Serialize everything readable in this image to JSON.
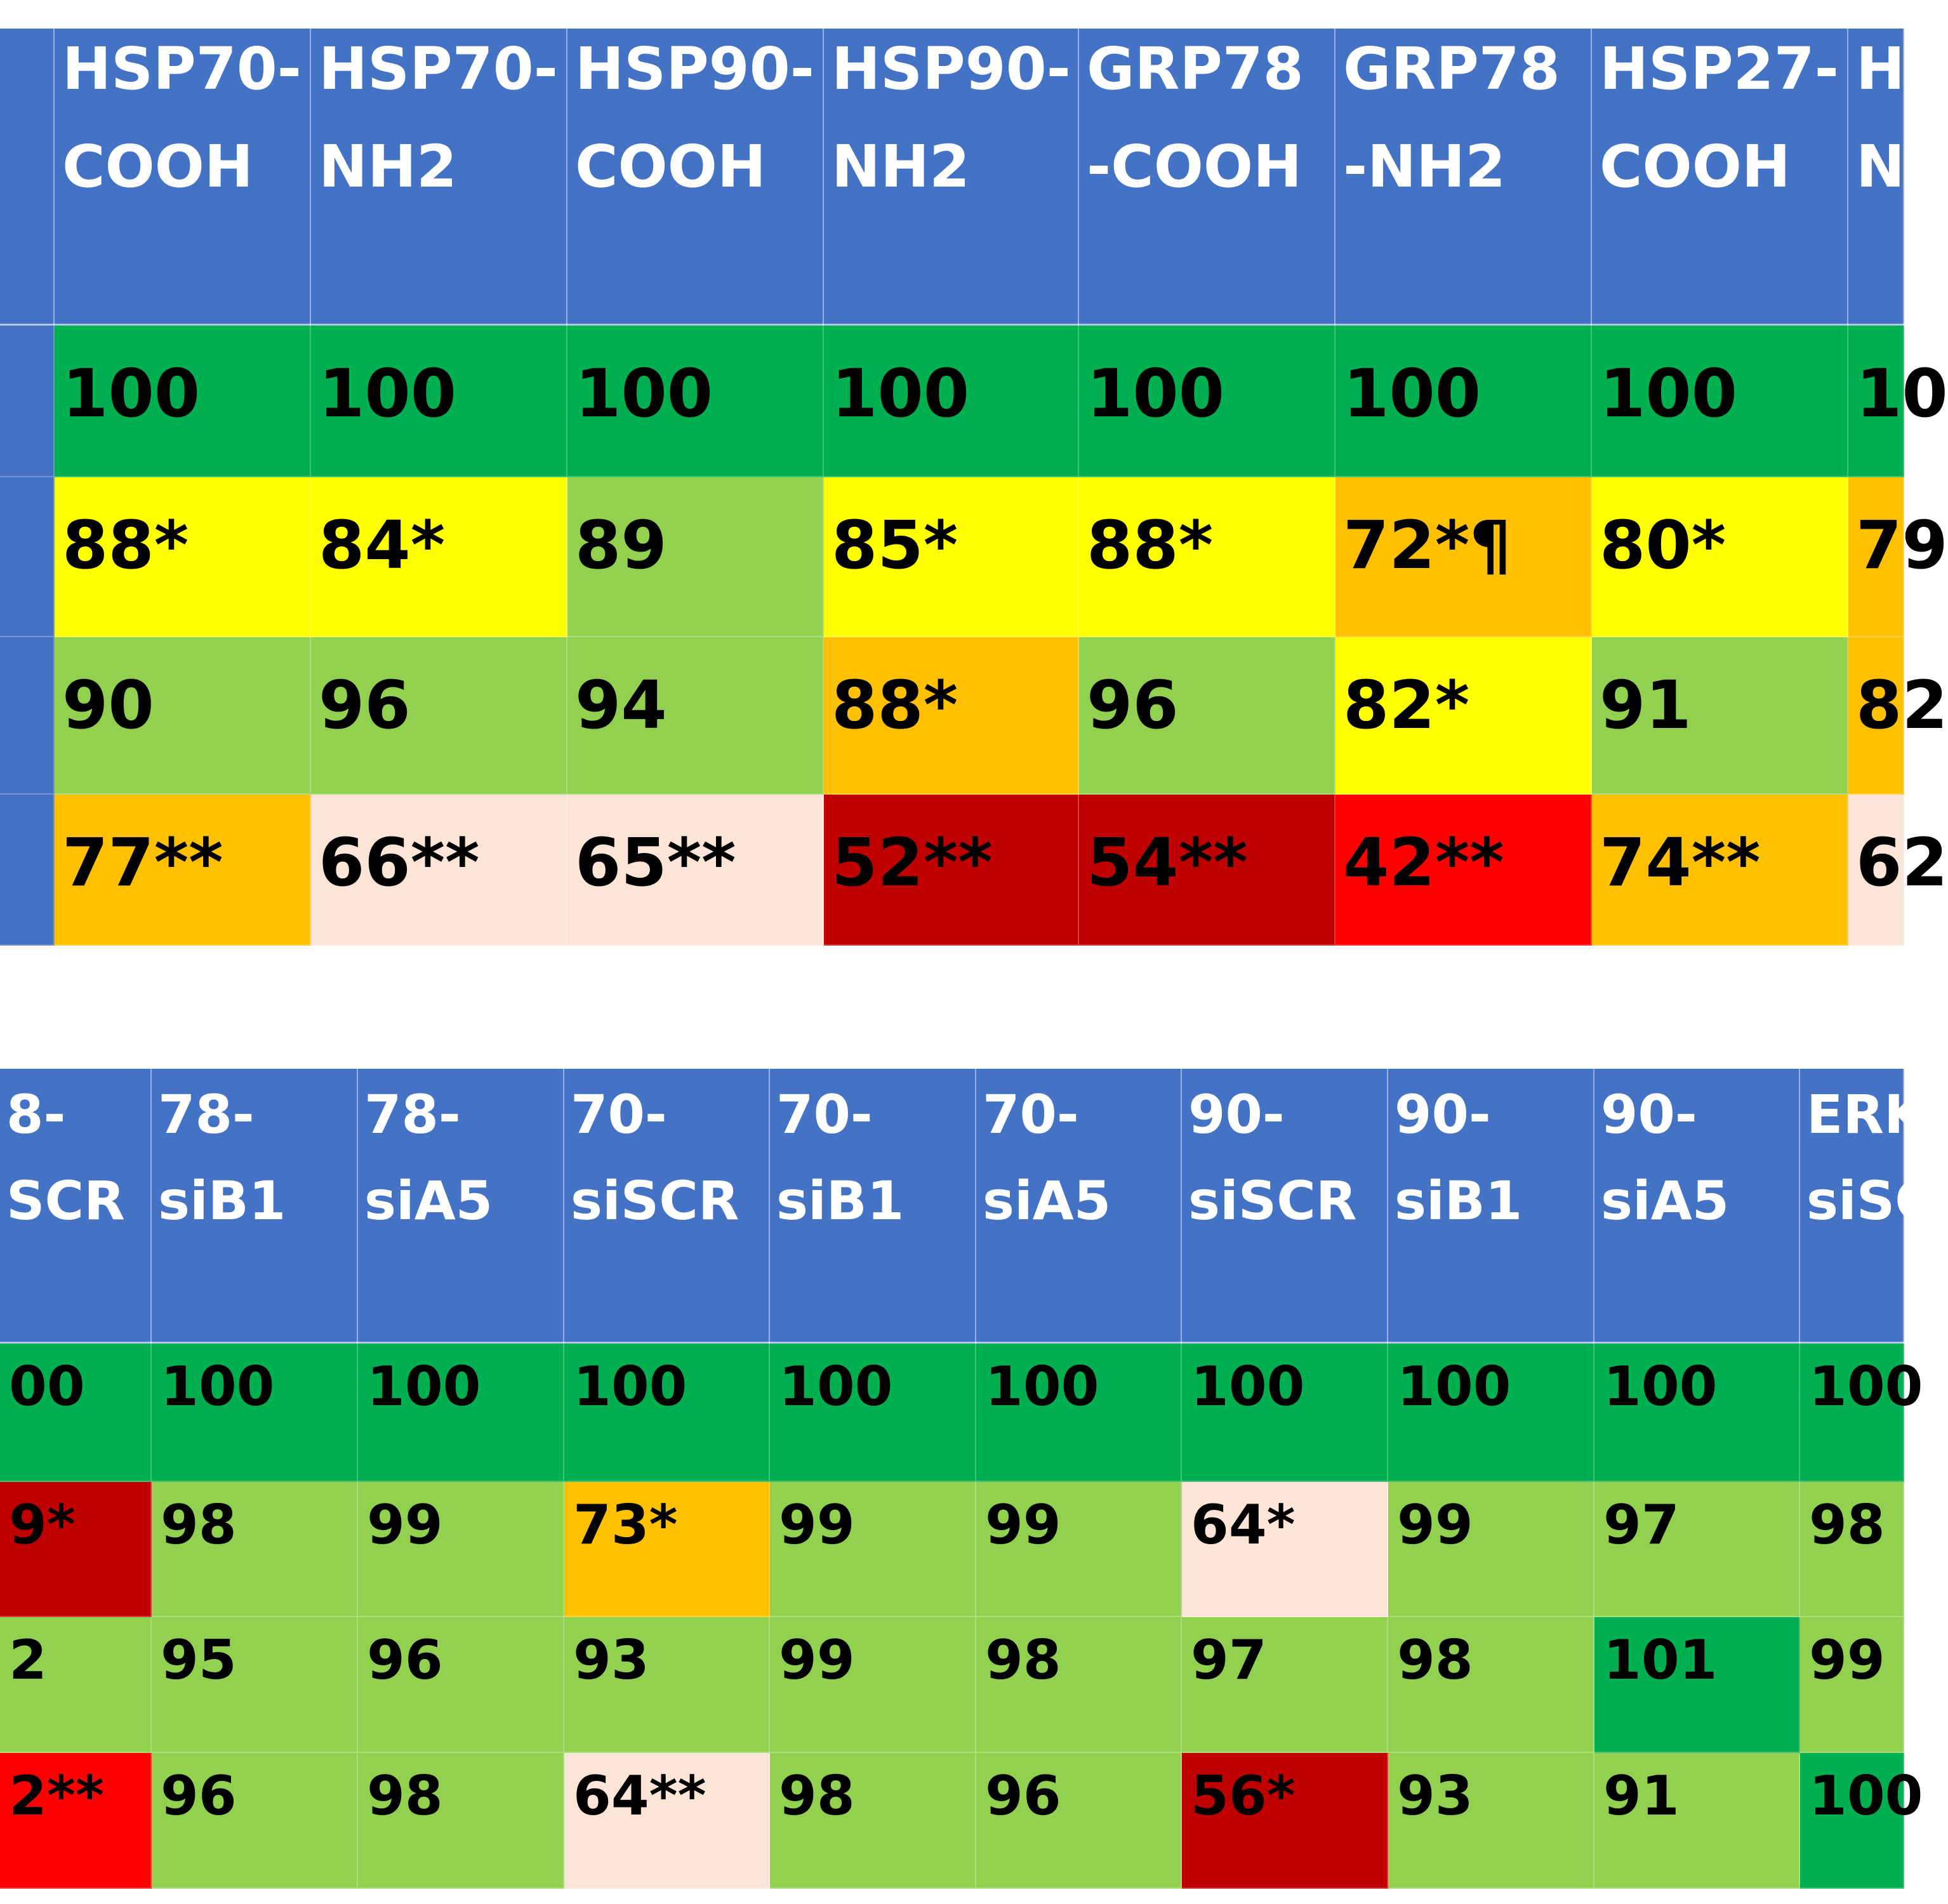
{
  "colors": {
    "header": "#4472C4",
    "dark-green": "#00B050",
    "light-green": "#92D050",
    "yellow": "#FFFF00",
    "orange": "#FFC000",
    "pink": "#FCE4D6",
    "dark-red": "#C00000",
    "red": "#FF0000"
  },
  "table1": {
    "headers": [
      {
        "l1": "",
        "l2": ""
      },
      {
        "l1": "HSP70-",
        "l2": "COOH"
      },
      {
        "l1": "HSP70-",
        "l2": "NH2"
      },
      {
        "l1": "HSP90-",
        "l2": "COOH"
      },
      {
        "l1": "HSP90-",
        "l2": "NH2"
      },
      {
        "l1": "GRP78",
        "l2": "-COOH"
      },
      {
        "l1": "GRP78",
        "l2": "-NH2"
      },
      {
        "l1": "HSP27-",
        "l2": "COOH"
      },
      {
        "l1": "H",
        "l2": "N"
      }
    ],
    "rows": [
      [
        {
          "v": "",
          "c": "header"
        },
        {
          "v": "100",
          "c": "dark-green"
        },
        {
          "v": "100",
          "c": "dark-green"
        },
        {
          "v": "100",
          "c": "dark-green"
        },
        {
          "v": "100",
          "c": "dark-green"
        },
        {
          "v": "100",
          "c": "dark-green"
        },
        {
          "v": "100",
          "c": "dark-green"
        },
        {
          "v": "100",
          "c": "dark-green"
        },
        {
          "v": "10",
          "c": "dark-green"
        }
      ],
      [
        {
          "v": "",
          "c": "header"
        },
        {
          "v": "88*",
          "c": "yellow"
        },
        {
          "v": "84*",
          "c": "yellow"
        },
        {
          "v": "89",
          "c": "light-green"
        },
        {
          "v": "85*",
          "c": "yellow"
        },
        {
          "v": "88*",
          "c": "yellow"
        },
        {
          "v": "72*¶",
          "c": "orange"
        },
        {
          "v": "80*",
          "c": "yellow"
        },
        {
          "v": "79",
          "c": "orange"
        }
      ],
      [
        {
          "v": "",
          "c": "header"
        },
        {
          "v": "90",
          "c": "light-green"
        },
        {
          "v": "96",
          "c": "light-green"
        },
        {
          "v": "94",
          "c": "light-green"
        },
        {
          "v": "88*",
          "c": "orange"
        },
        {
          "v": "96",
          "c": "light-green"
        },
        {
          "v": "82*",
          "c": "yellow"
        },
        {
          "v": "91",
          "c": "light-green"
        },
        {
          "v": "82",
          "c": "orange"
        }
      ],
      [
        {
          "v": "",
          "c": "header"
        },
        {
          "v": "77**",
          "c": "orange"
        },
        {
          "v": "66**",
          "c": "pink"
        },
        {
          "v": "65**",
          "c": "pink"
        },
        {
          "v": "52**",
          "c": "dark-red"
        },
        {
          "v": "54**",
          "c": "dark-red"
        },
        {
          "v": "42**",
          "c": "red"
        },
        {
          "v": "74**",
          "c": "orange"
        },
        {
          "v": "62",
          "c": "pink"
        }
      ]
    ]
  },
  "table2": {
    "headers": [
      {
        "l1": "8-",
        "l2": "SCR"
      },
      {
        "l1": "78-",
        "l2": "siB1"
      },
      {
        "l1": "78-",
        "l2": "siA5"
      },
      {
        "l1": "70-",
        "l2": "siSCR"
      },
      {
        "l1": "70-",
        "l2": "siB1"
      },
      {
        "l1": "70-",
        "l2": "siA5"
      },
      {
        "l1": "90-",
        "l2": "siSCR"
      },
      {
        "l1": "90-",
        "l2": "siB1"
      },
      {
        "l1": "90-",
        "l2": "siA5"
      },
      {
        "l1": "ERK",
        "l2": "siSC"
      }
    ],
    "rows": [
      [
        {
          "v": "00",
          "c": "dark-green"
        },
        {
          "v": "100",
          "c": "dark-green"
        },
        {
          "v": "100",
          "c": "dark-green"
        },
        {
          "v": "100",
          "c": "dark-green"
        },
        {
          "v": "100",
          "c": "dark-green"
        },
        {
          "v": "100",
          "c": "dark-green"
        },
        {
          "v": "100",
          "c": "dark-green"
        },
        {
          "v": "100",
          "c": "dark-green"
        },
        {
          "v": "100",
          "c": "dark-green"
        },
        {
          "v": "100",
          "c": "dark-green"
        }
      ],
      [
        {
          "v": "9*",
          "c": "dark-red"
        },
        {
          "v": "98",
          "c": "light-green"
        },
        {
          "v": "99",
          "c": "light-green"
        },
        {
          "v": "73*",
          "c": "orange"
        },
        {
          "v": "99",
          "c": "light-green"
        },
        {
          "v": "99",
          "c": "light-green"
        },
        {
          "v": "64*",
          "c": "pink"
        },
        {
          "v": "99",
          "c": "light-green"
        },
        {
          "v": "97",
          "c": "light-green"
        },
        {
          "v": "98",
          "c": "light-green"
        }
      ],
      [
        {
          "v": "2",
          "c": "light-green"
        },
        {
          "v": "95",
          "c": "light-green"
        },
        {
          "v": "96",
          "c": "light-green"
        },
        {
          "v": "93",
          "c": "light-green"
        },
        {
          "v": "99",
          "c": "light-green"
        },
        {
          "v": "98",
          "c": "light-green"
        },
        {
          "v": "97",
          "c": "light-green"
        },
        {
          "v": "98",
          "c": "light-green"
        },
        {
          "v": "101",
          "c": "dark-green"
        },
        {
          "v": "99",
          "c": "light-green"
        }
      ],
      [
        {
          "v": "2**",
          "c": "red"
        },
        {
          "v": "96",
          "c": "light-green"
        },
        {
          "v": "98",
          "c": "light-green"
        },
        {
          "v": "64**",
          "c": "pink"
        },
        {
          "v": "98",
          "c": "light-green"
        },
        {
          "v": "96",
          "c": "light-green"
        },
        {
          "v": "56*",
          "c": "dark-red"
        },
        {
          "v": "93",
          "c": "light-green"
        },
        {
          "v": "91",
          "c": "light-green"
        },
        {
          "v": "100",
          "c": "dark-green"
        }
      ]
    ]
  }
}
